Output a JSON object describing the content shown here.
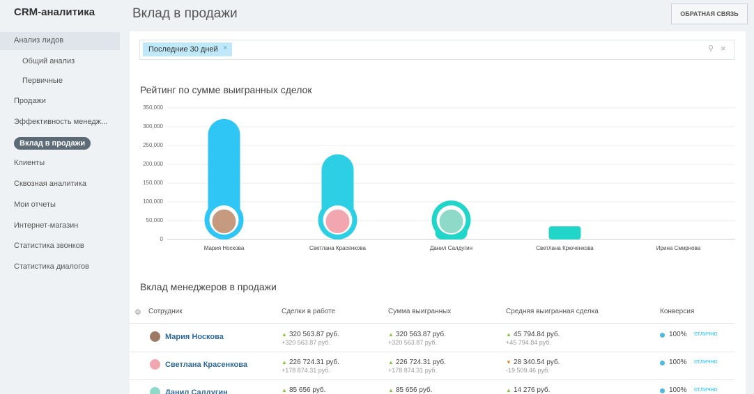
{
  "app_title": "CRM-аналитика",
  "page_title": "Вклад в продажи",
  "feedback_button": "ОБРАТНАЯ СВЯЗЬ",
  "nav": [
    {
      "label": "Анализ лидов",
      "children": [
        "Общий анализ",
        "Первичные"
      ]
    },
    {
      "label": "Продажи"
    },
    {
      "label": "Эффективность менедж..."
    },
    {
      "label": "Вклад в продажи"
    },
    {
      "label": "Клиенты"
    },
    {
      "label": "Сквозная аналитика"
    },
    {
      "label": "Мои отчеты"
    },
    {
      "label": "Интернет-магазин"
    },
    {
      "label": "Статистика звонков"
    },
    {
      "label": "Статистика диалогов"
    }
  ],
  "filter": {
    "tag": "Последние 30 дней"
  },
  "chart_data": {
    "type": "bar",
    "title": "Рейтинг по сумме выигранных сделок",
    "categories": [
      "Мария Носкова",
      "Светлана Красенкова",
      "Данил Салдугин",
      "Светлана Крюченкова",
      "Ирина Смирнова"
    ],
    "values": [
      320563.87,
      226724.31,
      85656,
      35000,
      0
    ],
    "colors": [
      "#2fc6f6",
      "#2ccfe4",
      "#22d5c9",
      "#22d5c9",
      "#22d5c9"
    ],
    "ylim": [
      0,
      350000
    ],
    "yticks": [
      0,
      {
        "value": 50000,
        "label": "50,000"
      },
      {
        "value": 100000,
        "label": "100,000"
      },
      {
        "value": 150000,
        "label": "150,000"
      },
      {
        "value": 200000,
        "label": "200,000"
      },
      {
        "value": 250000,
        "label": "250,000"
      },
      {
        "value": 300000,
        "label": "300,000"
      },
      {
        "value": 350000,
        "label": "350,000"
      }
    ],
    "grid": true
  },
  "table": {
    "title": "Вклад менеджеров в продажи",
    "columns": [
      "Сотрудник",
      "Сделки в работе",
      "Сумма выигранных",
      "Средняя выигранная сделка",
      "Конверсия"
    ],
    "rows": [
      {
        "name": "Мария Носкова",
        "cells": [
          {
            "main": "320 563.87 руб.",
            "change": "+320 563.87 руб.",
            "trend": "up"
          },
          {
            "main": "320 563.87 руб.",
            "change": "+320 563.87 руб.",
            "trend": "up"
          },
          {
            "main": "45 794.84 руб.",
            "change": "+45 794.84 руб.",
            "trend": "up"
          }
        ],
        "conversion": "100%",
        "rating": "отлично"
      },
      {
        "name": "Светлана Красенкова",
        "cells": [
          {
            "main": "226 724.31 руб.",
            "change": "+178 874.31 руб.",
            "trend": "up"
          },
          {
            "main": "226 724.31 руб.",
            "change": "+178 874.31 руб.",
            "trend": "up"
          },
          {
            "main": "28 340.54 руб.",
            "change": "-19 509.46 руб.",
            "trend": "down"
          }
        ],
        "conversion": "100%",
        "rating": "отлично"
      },
      {
        "name": "Данил Салдугин",
        "cells": [
          {
            "main": "85 656 руб.",
            "trend": "up"
          },
          {
            "main": "85 656 руб.",
            "trend": "up"
          },
          {
            "main": "14 276 руб.",
            "trend": "up"
          }
        ],
        "conversion": "100%",
        "rating": "отлично"
      }
    ]
  }
}
